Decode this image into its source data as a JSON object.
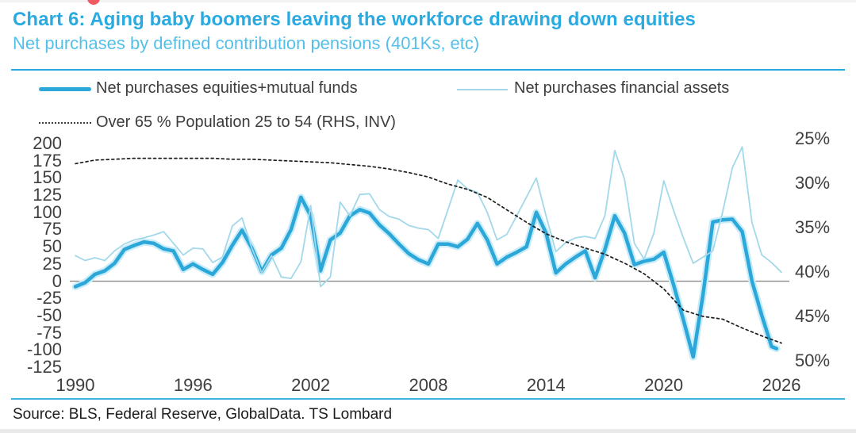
{
  "header": {
    "title": "Chart 6: Aging baby boomers leaving the workforce drawing down equities",
    "subtitle": "Net purchases by defined contribution pensions (401Ks, etc)"
  },
  "legend": {
    "items": [
      {
        "label": "Net purchases equities+mutual funds",
        "swatch": "thick-line"
      },
      {
        "label": "Net purchases financial assets",
        "swatch": "thin-line"
      },
      {
        "label": "Over 65 % Population 25 to 54 (RHS, INV)",
        "swatch": "dotted-line"
      }
    ]
  },
  "source": "Source: BLS, Federal Reserve, GlobalData. TS Lombard",
  "colors": {
    "accent": "#29abe2",
    "subtitle": "#54c0e8",
    "thick_line": "#2ba7da",
    "thick_halo": "#c9ecf8",
    "thin_line": "#a2d8e9",
    "dotted_line": "#1c1c1c",
    "zero_line": "#8a8a8a",
    "tick_text": "#3e3e3e",
    "red_dot": "#ef5a63"
  },
  "chart_data": {
    "type": "line",
    "title": "Net purchases by defined contribution pensions (401Ks, etc)",
    "grid": false,
    "left_axis": {
      "ticks": [
        200,
        175,
        150,
        125,
        100,
        75,
        50,
        25,
        0,
        -25,
        -50,
        -75,
        -100,
        -125
      ],
      "range": [
        -125,
        200
      ]
    },
    "right_axis": {
      "ticks": [
        {
          "label": "25%",
          "value": 25
        },
        {
          "label": "30%",
          "value": 30
        },
        {
          "label": "35%",
          "value": 35
        },
        {
          "label": "40%",
          "value": 40
        },
        {
          "label": "45%",
          "value": 45
        },
        {
          "label": "50%",
          "value": 50
        }
      ],
      "range": [
        25,
        50
      ],
      "inverted": true
    },
    "x_axis": {
      "ticks": [
        1990,
        1996,
        2002,
        2008,
        2014,
        2020,
        2026
      ],
      "range": [
        1990,
        2026.2
      ]
    },
    "series": [
      {
        "name": "Net purchases equities+mutual funds",
        "axis": "left",
        "style": "thick",
        "x": [
          1990,
          1990.5,
          1991,
          1991.5,
          1992,
          1992.5,
          1993,
          1993.5,
          1994,
          1994.5,
          1995,
          1995.5,
          1996,
          1996.5,
          1997,
          1997.5,
          1998,
          1998.5,
          1999,
          1999.5,
          2000,
          2000.5,
          2001,
          2001.5,
          2002,
          2002.5,
          2003,
          2003.5,
          2004,
          2004.5,
          2005,
          2005.5,
          2006,
          2006.5,
          2007,
          2007.5,
          2008,
          2008.5,
          2009,
          2009.5,
          2010,
          2010.5,
          2011,
          2011.5,
          2012,
          2012.5,
          2013,
          2013.5,
          2014,
          2014.5,
          2015,
          2015.5,
          2016,
          2016.5,
          2017,
          2017.5,
          2018,
          2018.5,
          2019,
          2019.5,
          2020,
          2020.5,
          2021,
          2021.5,
          2022,
          2022.5,
          2023,
          2023.5,
          2024,
          2024.5,
          2025,
          2025.5,
          2025.75
        ],
        "values": [
          -8,
          -2,
          10,
          15,
          26,
          46,
          52,
          57,
          55,
          47,
          44,
          17,
          25,
          17,
          10,
          27,
          52,
          74,
          48,
          14,
          38,
          48,
          75,
          122,
          95,
          15,
          60,
          70,
          95,
          104,
          99,
          82,
          69,
          54,
          40,
          31,
          25,
          54,
          54,
          50,
          61,
          84,
          60,
          25,
          35,
          42,
          50,
          100,
          70,
          12,
          25,
          35,
          44,
          5,
          46,
          95,
          70,
          24,
          29,
          32,
          42,
          -5,
          -56,
          -110,
          -20,
          86,
          89,
          90,
          72,
          0,
          -50,
          -95,
          -98
        ]
      },
      {
        "name": "Net purchases financial assets",
        "axis": "left",
        "style": "thin",
        "x": [
          1990,
          1990.5,
          1991,
          1991.5,
          1992,
          1992.5,
          1993,
          1993.5,
          1994,
          1994.5,
          1995,
          1995.5,
          1996,
          1996.5,
          1997,
          1997.5,
          1998,
          1998.5,
          1999,
          1999.5,
          2000,
          2000.5,
          2001,
          2001.5,
          2002,
          2002.5,
          2003,
          2003.5,
          2004,
          2004.5,
          2005,
          2005.5,
          2006,
          2006.5,
          2007,
          2007.5,
          2008,
          2008.5,
          2009,
          2009.5,
          2010,
          2010.5,
          2011,
          2011.5,
          2012,
          2012.5,
          2013,
          2013.5,
          2014,
          2014.5,
          2015,
          2015.5,
          2016,
          2016.5,
          2017,
          2017.5,
          2018,
          2018.5,
          2019,
          2019.5,
          2020,
          2020.5,
          2021,
          2021.5,
          2022,
          2022.5,
          2023,
          2023.5,
          2024,
          2024.5,
          2025,
          2025.5,
          2026
        ],
        "values": [
          37,
          30,
          34,
          30,
          44,
          54,
          60,
          63,
          67,
          72,
          55,
          38,
          48,
          47,
          27,
          35,
          80,
          92,
          48,
          12,
          37,
          6,
          4,
          28,
          110,
          -8,
          6,
          115,
          95,
          126,
          127,
          104,
          94,
          90,
          81,
          77,
          75,
          62,
          104,
          147,
          134,
          129,
          100,
          60,
          68,
          95,
          122,
          150,
          95,
          43,
          56,
          63,
          65,
          62,
          95,
          190,
          148,
          55,
          32,
          70,
          146,
          103,
          63,
          26,
          35,
          44,
          100,
          165,
          195,
          85,
          38,
          27,
          13
        ]
      },
      {
        "name": "Over 65 % Population 25 to 54 (RHS, INV)",
        "axis": "right",
        "style": "dotted",
        "x": [
          1990,
          1991,
          1992,
          1993,
          1994,
          1995,
          1996,
          1997,
          1998,
          1999,
          2000,
          2001,
          2002,
          2003,
          2004,
          2005,
          2006,
          2007,
          2008,
          2009,
          2010,
          2011,
          2012,
          2013,
          2014,
          2015,
          2016,
          2017,
          2018,
          2019,
          2020,
          2021,
          2022,
          2023,
          2024,
          2025,
          2026
        ],
        "values": [
          27.8,
          27.4,
          27.3,
          27.2,
          27.2,
          27.2,
          27.2,
          27.2,
          27.3,
          27.3,
          27.4,
          27.5,
          27.6,
          27.7,
          27.9,
          28.1,
          28.4,
          28.8,
          29.3,
          30.1,
          30.7,
          31.6,
          33.0,
          34.4,
          35.7,
          36.6,
          37.3,
          38.0,
          39.0,
          40.2,
          41.9,
          44.3,
          45.0,
          45.3,
          46.3,
          47.2,
          48.0
        ]
      }
    ]
  }
}
